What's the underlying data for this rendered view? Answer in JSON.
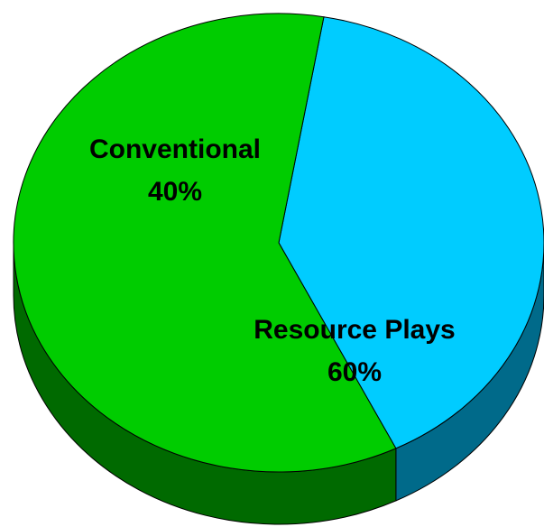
{
  "chart_data": {
    "type": "pie",
    "style": "3d",
    "slices": [
      {
        "label": "Conventional",
        "value": 40,
        "value_label": "40%",
        "color": "#00CCFF",
        "side_color": "#006A8A"
      },
      {
        "label": "Resource Plays",
        "value": 60,
        "value_label": "60%",
        "color": "#00CC00",
        "side_color": "#006A00"
      }
    ],
    "edge_color": "#000000"
  }
}
